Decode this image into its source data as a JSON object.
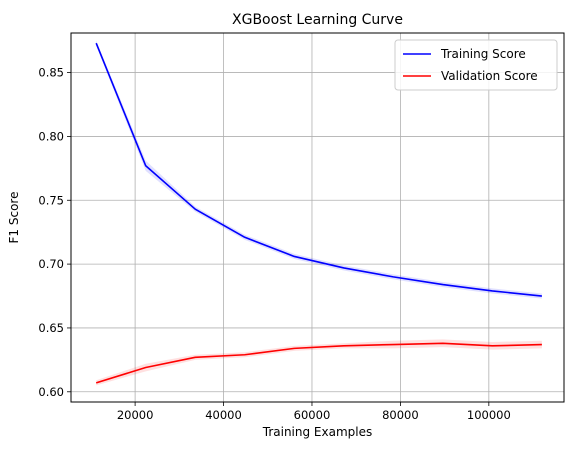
{
  "chart_data": {
    "type": "line",
    "title": "XGBoost Learning Curve",
    "xlabel": "Training Examples",
    "ylabel": "F1 Score",
    "xlim": [
      5500,
      117000
    ],
    "ylim": [
      0.592,
      0.881
    ],
    "xticks": [
      20000,
      40000,
      60000,
      80000,
      100000
    ],
    "xtick_labels": [
      "20000",
      "40000",
      "60000",
      "80000",
      "100000"
    ],
    "yticks": [
      0.6,
      0.65,
      0.7,
      0.75,
      0.8,
      0.85
    ],
    "ytick_labels": [
      "0.60",
      "0.65",
      "0.70",
      "0.75",
      "0.80",
      "0.85"
    ],
    "grid": true,
    "legend_position": "top-right",
    "x": [
      11200,
      22400,
      33600,
      44800,
      56000,
      67200,
      78400,
      89600,
      100800,
      112000
    ],
    "series": [
      {
        "name": "Training Score",
        "color": "#0000ff",
        "band_color": "#0000ff",
        "values": [
          0.873,
          0.777,
          0.743,
          0.721,
          0.706,
          0.697,
          0.69,
          0.684,
          0.679,
          0.675
        ],
        "std": [
          0.002,
          0.004,
          0.002,
          0.002,
          0.002,
          0.002,
          0.002,
          0.002,
          0.002,
          0.002
        ]
      },
      {
        "name": "Validation Score",
        "color": "#ff0000",
        "band_color": "#ff0000",
        "values": [
          0.607,
          0.619,
          0.627,
          0.629,
          0.634,
          0.636,
          0.637,
          0.638,
          0.636,
          0.637
        ],
        "std": [
          0.002,
          0.003,
          0.002,
          0.002,
          0.002,
          0.002,
          0.003,
          0.003,
          0.003,
          0.003
        ]
      }
    ]
  }
}
